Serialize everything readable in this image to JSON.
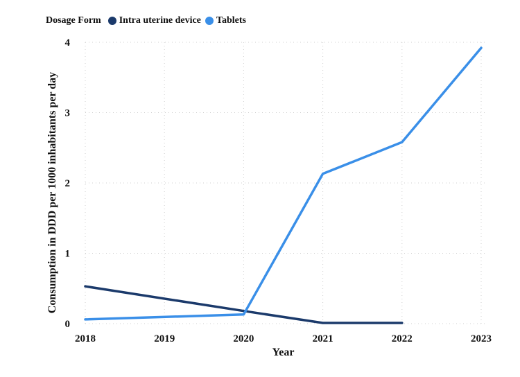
{
  "legend": {
    "title": "Dosage Form"
  },
  "chart_data": {
    "type": "line",
    "title": "",
    "xlabel": "Year",
    "ylabel": "Consumption in DDD per 1000 inhabitants per day",
    "x": [
      2018,
      2019,
      2020,
      2021,
      2022,
      2023
    ],
    "xlim": [
      2018,
      2023
    ],
    "ylim": [
      0,
      4
    ],
    "yticks": [
      0,
      1,
      2,
      3,
      4
    ],
    "grid": true,
    "legend_position": "top-left",
    "series": [
      {
        "name": "Intra uterine device",
        "color": "#1b3a6b",
        "points": [
          [
            2018,
            0.53
          ],
          [
            2020,
            0.18
          ],
          [
            2021,
            0.01
          ],
          [
            2022,
            0.01
          ]
        ]
      },
      {
        "name": "Tablets",
        "color": "#3a8fe8",
        "points": [
          [
            2018,
            0.06
          ],
          [
            2020,
            0.13
          ],
          [
            2021,
            2.13
          ],
          [
            2022,
            2.58
          ],
          [
            2023,
            3.92
          ]
        ]
      }
    ]
  }
}
